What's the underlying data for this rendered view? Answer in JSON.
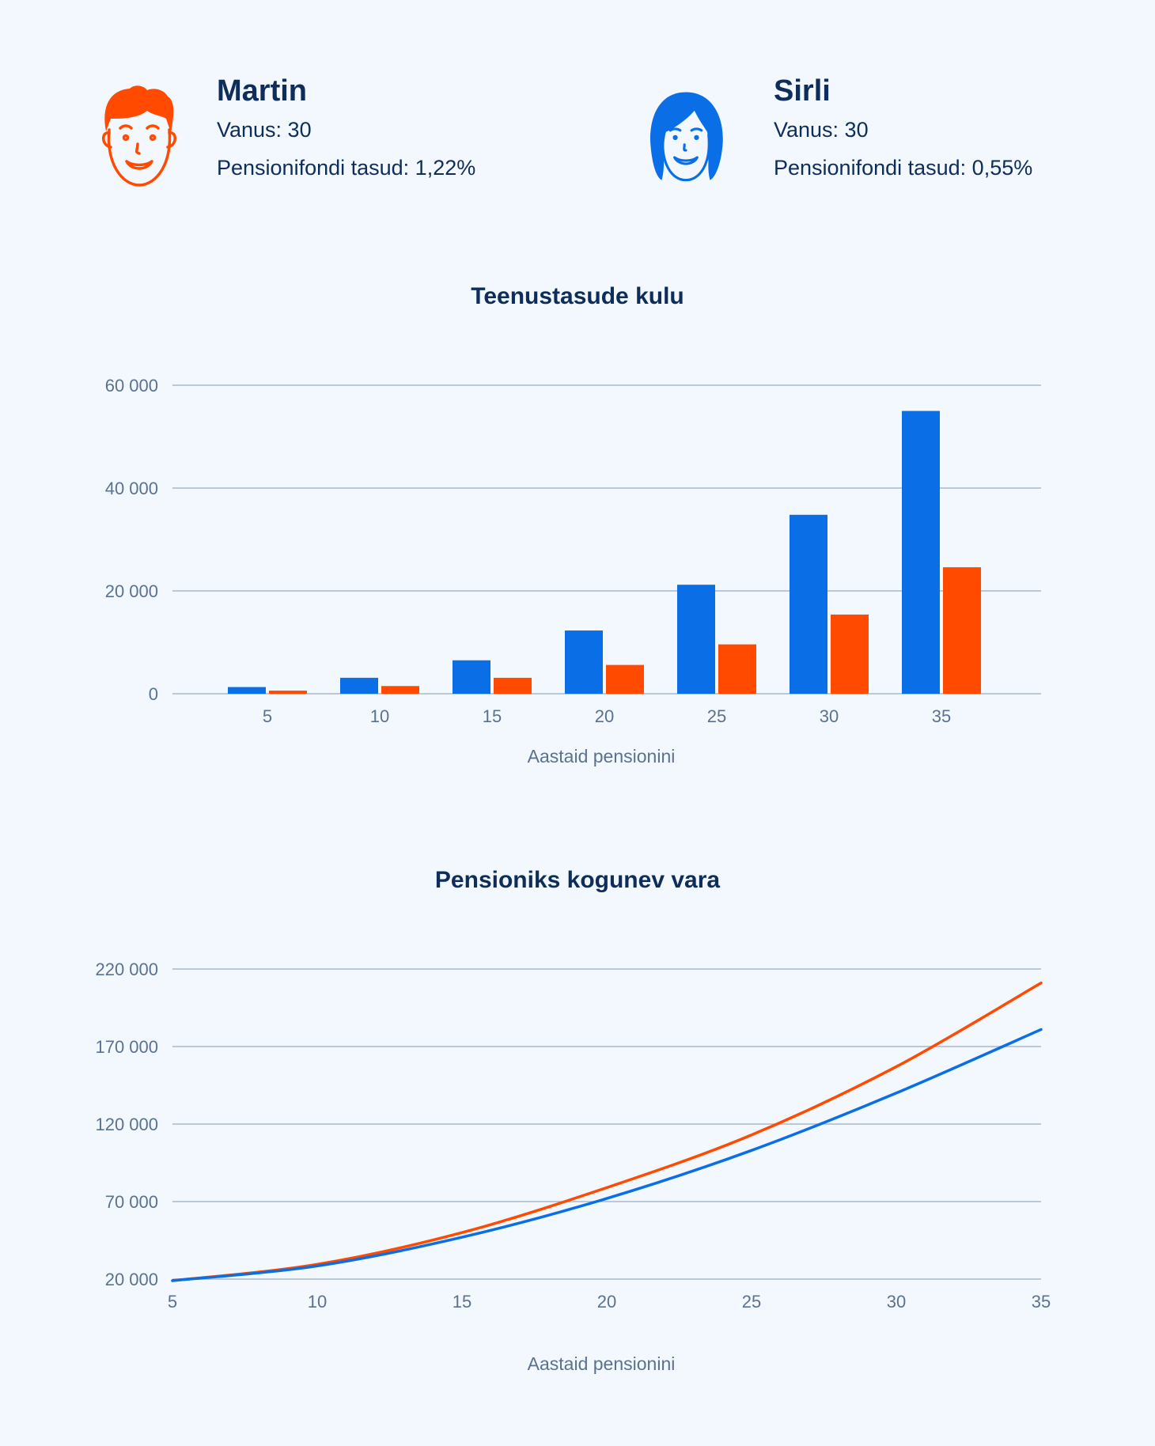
{
  "colors": {
    "blue": "#0a6fe6",
    "orange": "#ff4a00",
    "grid": "#a8b8cc",
    "text": "#0d2d5a",
    "muted": "#5a7290"
  },
  "people": [
    {
      "name": "Martin",
      "age": "Vanus: 30",
      "fees": "Pensionifondi tasud: 1,22%",
      "icon": "male-face-icon",
      "color": "#ff4a00"
    },
    {
      "name": "Sirli",
      "age": "Vanus: 30",
      "fees": "Pensionifondi tasud: 0,55%",
      "icon": "female-face-icon",
      "color": "#0a6fe6"
    }
  ],
  "chart_data": [
    {
      "type": "bar",
      "title": "Teenustasude kulu",
      "xlabel": "Aastaid pensionini",
      "ylabel": "",
      "categories": [
        "5",
        "10",
        "15",
        "20",
        "25",
        "30",
        "35"
      ],
      "series": [
        {
          "color": "#0a6fe6",
          "values": [
            1300,
            3100,
            6500,
            12300,
            21200,
            34800,
            55000
          ]
        },
        {
          "color": "#ff4a00",
          "values": [
            600,
            1500,
            3100,
            5600,
            9600,
            15400,
            24600
          ]
        }
      ],
      "ylim": [
        0,
        60000
      ],
      "yticks": [
        0,
        20000,
        40000,
        60000
      ],
      "ytick_labels": [
        "0",
        "20 000",
        "40 000",
        "60 000"
      ],
      "grid": true
    },
    {
      "type": "line",
      "title": "Pensioniks kogunev vara",
      "xlabel": "Aastaid pensionini",
      "ylabel": "",
      "x": [
        5,
        10,
        15,
        20,
        25,
        30,
        35
      ],
      "series": [
        {
          "color": "#ff4a00",
          "values": [
            19000,
            29500,
            50000,
            79000,
            113000,
            157000,
            211000
          ]
        },
        {
          "color": "#0a6fe6",
          "values": [
            19000,
            28500,
            47000,
            72000,
            103000,
            140000,
            181000
          ]
        }
      ],
      "xlim": [
        5,
        35
      ],
      "ylim": [
        20000,
        220000
      ],
      "xticks": [
        "5",
        "10",
        "15",
        "20",
        "25",
        "30",
        "35"
      ],
      "yticks": [
        20000,
        70000,
        120000,
        170000,
        220000
      ],
      "ytick_labels": [
        "20 000",
        "70 000",
        "120 000",
        "170 000",
        "220 000"
      ],
      "grid": true
    }
  ]
}
